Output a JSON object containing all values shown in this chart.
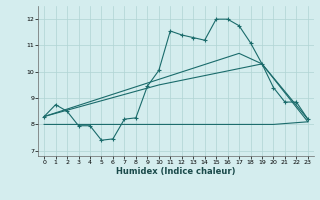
{
  "title": "",
  "xlabel": "Humidex (Indice chaleur)",
  "background_color": "#d4edee",
  "grid_color": "#b0d4d4",
  "line_color": "#1a6b6b",
  "xlim": [
    -0.5,
    23.5
  ],
  "ylim": [
    6.8,
    12.5
  ],
  "yticks": [
    7,
    8,
    9,
    10,
    11,
    12
  ],
  "xticks": [
    0,
    1,
    2,
    3,
    4,
    5,
    6,
    7,
    8,
    9,
    10,
    11,
    12,
    13,
    14,
    15,
    16,
    17,
    18,
    19,
    20,
    21,
    22,
    23
  ],
  "series1_x": [
    0,
    1,
    2,
    3,
    4,
    5,
    6,
    7,
    8,
    9,
    10,
    11,
    12,
    13,
    14,
    15,
    16,
    17,
    18,
    19,
    20,
    21,
    22,
    23
  ],
  "series1_y": [
    8.3,
    8.75,
    8.5,
    7.95,
    7.95,
    7.4,
    7.45,
    8.2,
    8.25,
    9.45,
    10.05,
    11.55,
    11.4,
    11.3,
    11.2,
    12.0,
    12.0,
    11.75,
    11.1,
    10.3,
    9.4,
    8.85,
    8.85,
    8.2
  ],
  "series2_x": [
    0,
    10,
    19,
    23
  ],
  "series2_y": [
    8.3,
    9.5,
    10.3,
    8.2
  ],
  "series3_x": [
    0,
    17,
    19,
    23
  ],
  "series3_y": [
    8.3,
    10.7,
    10.3,
    8.1
  ],
  "series4_x": [
    0,
    20,
    23
  ],
  "series4_y": [
    8.0,
    8.0,
    8.1
  ]
}
